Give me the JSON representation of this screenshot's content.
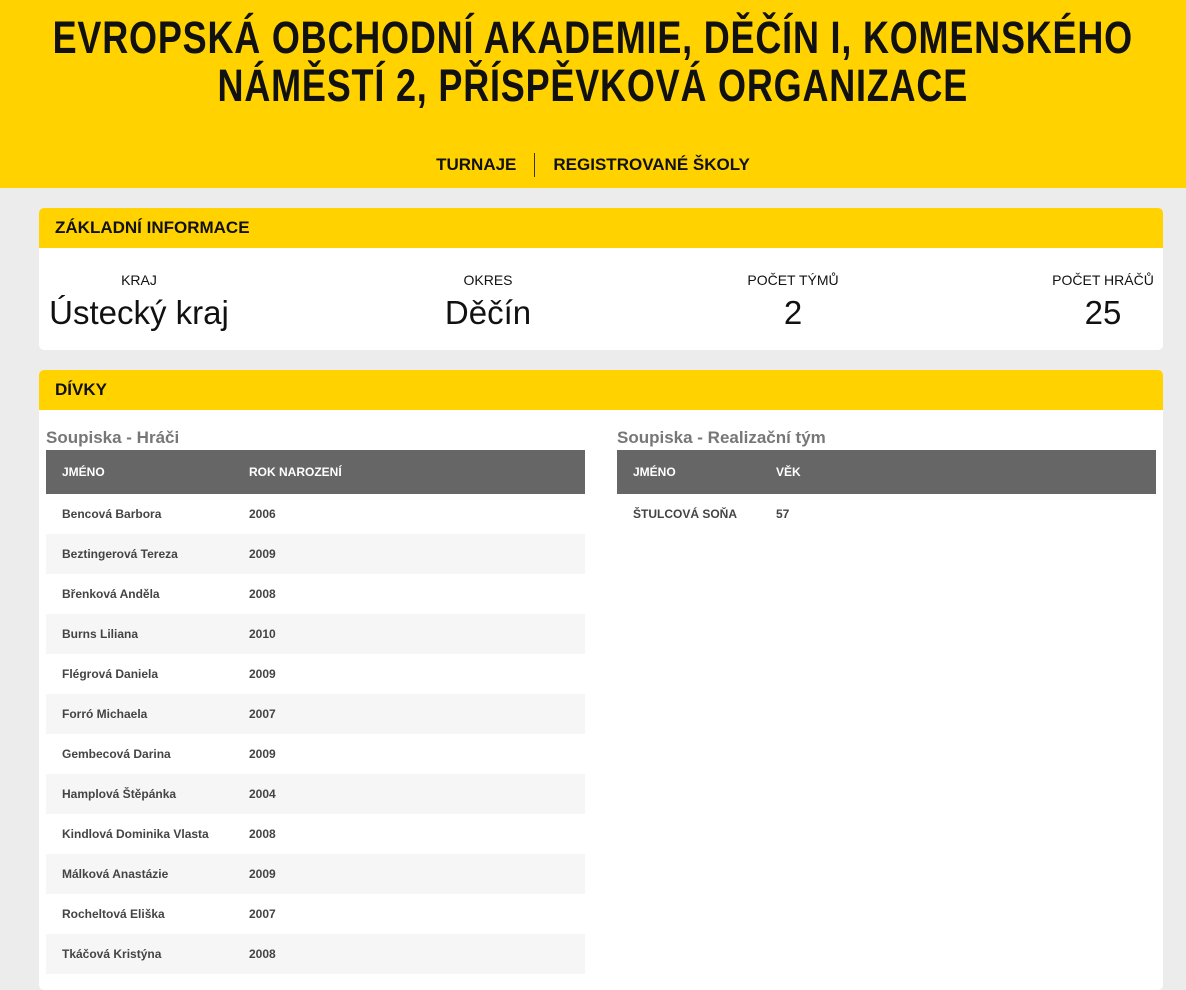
{
  "header": {
    "title": "EVROPSKÁ OBCHODNÍ AKADEMIE, DĚČÍN I, KOMENSKÉHO NÁMĚSTÍ 2, PŘÍSPĚVKOVÁ ORGANIZACE",
    "nav": [
      "TURNAJE",
      "REGISTROVANÉ ŠKOLY"
    ]
  },
  "info": {
    "title": "ZÁKLADNÍ INFORMACE",
    "items": [
      {
        "label": "KRAJ",
        "value": "Ústecký kraj"
      },
      {
        "label": "OKRES",
        "value": "Děčín"
      },
      {
        "label": "POČET TÝMŮ",
        "value": 2
      },
      {
        "label": "POČET HRÁČŮ",
        "value": 25
      }
    ]
  },
  "section": {
    "title": "DÍVKY",
    "players": {
      "title": "Soupiska - Hráči",
      "columns": [
        "JMÉNO",
        "ROK NAROZENÍ"
      ],
      "rows": [
        [
          "Bencová Barbora",
          2006
        ],
        [
          "Beztingerová Tereza",
          2009
        ],
        [
          "Břenková Anděla",
          2008
        ],
        [
          "Burns Liliana",
          2010
        ],
        [
          "Flégrová Daniela",
          2009
        ],
        [
          "Forró Michaela",
          2007
        ],
        [
          "Gembecová Darina",
          2009
        ],
        [
          "Hamplová Štěpánka",
          2004
        ],
        [
          "Kindlová Dominika Vlasta",
          2008
        ],
        [
          "Málková Anastázie",
          2009
        ],
        [
          "Rocheltová Eliška",
          2007
        ],
        [
          "Tkáčová Kristýna",
          2008
        ]
      ]
    },
    "staff": {
      "title": "Soupiska - Realizační tým",
      "columns": [
        "JMÉNO",
        "VĚK"
      ],
      "rows": [
        [
          "ŠTULCOVÁ SOŇA",
          57
        ]
      ]
    }
  }
}
